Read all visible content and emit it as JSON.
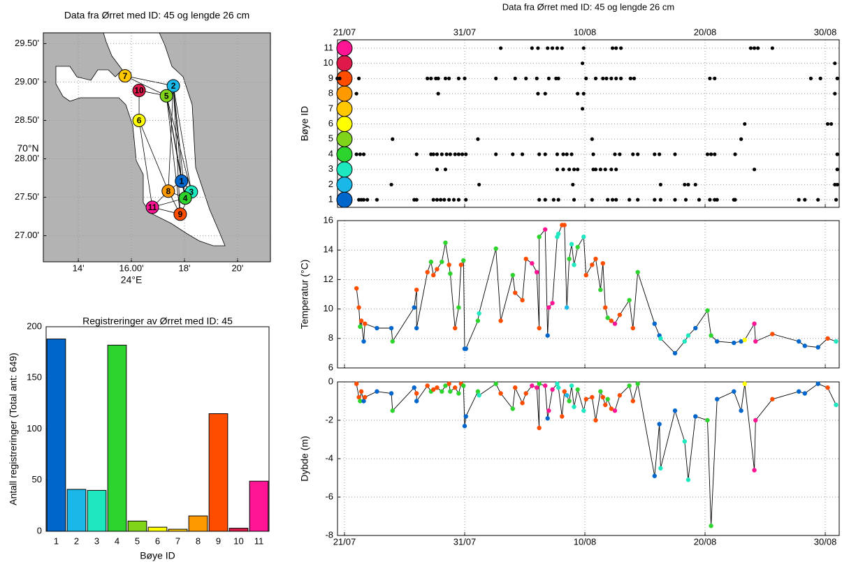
{
  "chart_data": [
    {
      "type": "scatter",
      "title": "Data fra Ørret med ID: 45 og lengde 26 cm",
      "xlabel": "24°E",
      "ylabel": "70°N",
      "labels": [
        "1",
        "2",
        "3",
        "4",
        "5",
        "6",
        "7",
        "8",
        "9",
        "10",
        "11"
      ],
      "x": [
        17.89,
        17.58,
        18.26,
        18.03,
        17.32,
        16.29,
        15.76,
        17.39,
        17.84,
        16.29,
        16.79
      ],
      "y": [
        27.71,
        28.95,
        27.57,
        27.49,
        28.82,
        28.5,
        29.08,
        27.58,
        27.28,
        28.89,
        27.37
      ],
      "xlim": [
        12.68,
        21.24
      ],
      "ylim": [
        26.66,
        29.64
      ],
      "xticks": [
        {
          "value": 14,
          "label": "14'"
        },
        {
          "value": 16,
          "label": "16.00'"
        },
        {
          "value": 18,
          "label": "18'"
        },
        {
          "value": 20,
          "label": "20'"
        }
      ],
      "yticks": [
        {
          "value": 27,
          "label": "27.00'"
        },
        {
          "value": 27.5,
          "label": "27.50'"
        },
        {
          "value": 28,
          "label": "28.00'"
        },
        {
          "value": 28.5,
          "label": "28.50'"
        },
        {
          "value": 29,
          "label": "29.00'"
        },
        {
          "value": 29.5,
          "label": "29.50'"
        }
      ],
      "grid": true
    },
    {
      "type": "bar",
      "title": "Registreringer av Ørret med ID: 45",
      "xlabel": "Bøye ID",
      "ylabel": "Antall registreringer (Total ant: 649)",
      "categories": [
        "1",
        "2",
        "3",
        "4",
        "5",
        "6",
        "7",
        "8",
        "9",
        "10",
        "11"
      ],
      "values": [
        188,
        41,
        40,
        182,
        10,
        4,
        2,
        15,
        115,
        3,
        49
      ],
      "colors": [
        "#0066cc",
        "#1ab8e8",
        "#1de8c0",
        "#2ed42e",
        "#80d41a",
        "#ffff00",
        "#ffc800",
        "#ff9900",
        "#ff4d00",
        "#e0194b",
        "#ff1493"
      ],
      "ylim": [
        0,
        200
      ],
      "yticks": [
        0,
        50,
        100,
        150,
        200
      ]
    },
    {
      "type": "detections",
      "title": "Data fra Ørret med ID: 45 og lengde 26 cm",
      "ylabel": "Bøye ID",
      "series": [
        {
          "buoy": 1,
          "x": [
            203.2,
            203.4,
            203.6,
            203.9,
            204.7,
            207.8,
            208.0,
            209.4,
            209.7,
            210.0,
            210.3,
            210.7,
            211.1,
            211.5,
            212.1,
            218.2,
            218.7,
            219.4,
            219.8,
            221.1,
            222.6,
            223.9,
            224.3,
            224.6,
            225.7,
            226.4,
            227.8,
            228.3,
            229.5,
            230.4,
            231.5,
            232.4,
            232.8,
            233.0,
            234.4,
            234.5,
            239.8,
            240.3,
            241.4,
            242.9
          ]
        },
        {
          "buoy": 2,
          "x": [
            205.9,
            213.2,
            221.0,
            228.3,
            230.3,
            230.6,
            231.2,
            242.8,
            243.0
          ]
        },
        {
          "buoy": 3,
          "x": [
            209.7,
            210.4,
            219.7,
            220.2,
            220.7,
            221.1,
            221.4,
            222.7,
            222.9,
            223.3,
            223.7,
            224.2,
            224.6,
            236.1,
            243.0
          ]
        },
        {
          "buoy": 4,
          "x": [
            203.0,
            203.3,
            203.6,
            208.0,
            209.2,
            209.4,
            209.7,
            210.1,
            210.5,
            210.8,
            211.2,
            211.5,
            211.8,
            212.1,
            214.6,
            216.0,
            216.8,
            218.2,
            218.7,
            219.7,
            220.2,
            220.5,
            220.9,
            222.7,
            224.5,
            224.9,
            226.0,
            226.4,
            227.8,
            228.2,
            229.5,
            232.2,
            232.5,
            232.8,
            234.5,
            243.0
          ]
        },
        {
          "buoy": 5,
          "x": [
            206.0,
            213.1,
            222.6,
            235.0
          ]
        },
        {
          "buoy": 6,
          "x": [
            235.3,
            242.2,
            242.5
          ]
        },
        {
          "buoy": 7,
          "x": [
            221.8
          ]
        },
        {
          "buoy": 8,
          "x": [
            203.0,
            209.8,
            218.1,
            218.7,
            221.4,
            221.9,
            242.8
          ]
        },
        {
          "buoy": 9,
          "x": [
            201.4,
            201.6,
            203.2,
            208.9,
            209.2,
            209.6,
            209.8,
            210.4,
            210.7,
            211.5,
            212.0,
            214.6,
            216.2,
            217.1,
            218.0,
            219.0,
            219.6,
            219.8,
            222.1,
            222.9,
            223.5,
            223.8,
            224.2,
            224.6,
            225.0,
            225.8,
            226.1,
            232.4,
            232.8,
            240.8,
            241.6,
            243.0
          ]
        },
        {
          "buoy": 10,
          "x": [
            221.8,
            242.8
          ]
        },
        {
          "buoy": 11,
          "x": [
            215.0,
            217.6,
            218.1,
            218.9,
            219.3,
            219.7,
            220.1,
            221.9,
            224.3,
            224.6,
            225.0,
            235.8,
            236.1,
            236.4,
            237.6
          ]
        }
      ],
      "xlim": [
        201.42,
        243.16
      ],
      "ylim": [
        0.5,
        11.55
      ],
      "xticks": [
        {
          "value": 202,
          "label": "21/07"
        },
        {
          "value": 212,
          "label": "31/07"
        },
        {
          "value": 222,
          "label": "10/08"
        },
        {
          "value": 232,
          "label": "20/08"
        },
        {
          "value": 242,
          "label": "30/08"
        }
      ],
      "yticks": [
        1,
        2,
        3,
        4,
        5,
        6,
        7,
        8,
        9,
        10,
        11
      ],
      "grid": true
    },
    {
      "type": "line",
      "ylabel": "Temperatur (°C)",
      "x": [
        203.0,
        203.2,
        203.3,
        203.4,
        203.6,
        203.7,
        204.7,
        205.9,
        206.0,
        207.8,
        208.0,
        208.0,
        208.9,
        209.2,
        209.4,
        209.7,
        210.1,
        210.4,
        210.7,
        210.8,
        211.2,
        211.5,
        211.7,
        211.9,
        212.0,
        212.1,
        213.1,
        213.2,
        214.6,
        215.0,
        216.0,
        216.2,
        216.8,
        217.1,
        217.6,
        218.0,
        218.2,
        218.2,
        218.7,
        218.9,
        219.0,
        219.3,
        219.7,
        219.8,
        220.1,
        220.3,
        220.5,
        220.7,
        220.9,
        221.1,
        221.4,
        221.9,
        222.1,
        222.6,
        222.9,
        223.3,
        223.5,
        223.7,
        223.9,
        224.2,
        224.5,
        224.9,
        225.7,
        226.0,
        226.4,
        227.8,
        228.2,
        228.3,
        229.5,
        230.3,
        230.6,
        231.2,
        232.2,
        232.5,
        233.0,
        234.4,
        235.0,
        235.3,
        236.1,
        236.2,
        237.6,
        239.8,
        240.3,
        241.4,
        242.2,
        242.9
      ],
      "values": [
        11.4,
        10.1,
        8.8,
        9.2,
        7.8,
        9.0,
        8.7,
        8.7,
        7.8,
        10.1,
        11.3,
        8.7,
        12.5,
        13.2,
        12.3,
        12.7,
        13.2,
        14.5,
        13.0,
        12.4,
        8.7,
        10.1,
        13.0,
        13.3,
        7.3,
        7.3,
        9.2,
        9.7,
        14.1,
        9.2,
        12.3,
        11.1,
        10.6,
        13.4,
        13.1,
        12.5,
        8.7,
        14.9,
        15.4,
        8.2,
        10.1,
        10.4,
        14.9,
        15.1,
        15.7,
        15.7,
        10.1,
        13.4,
        14.4,
        13.0,
        14.2,
        14.9,
        12.3,
        13.0,
        13.4,
        11.3,
        13.1,
        10.1,
        9.4,
        9.2,
        9.0,
        9.6,
        10.6,
        8.7,
        12.5,
        9.0,
        8.2,
        8.0,
        7.0,
        7.8,
        8.2,
        8.7,
        9.9,
        8.2,
        7.8,
        7.7,
        7.8,
        7.9,
        9.0,
        7.8,
        8.3,
        7.8,
        7.5,
        7.4,
        8.0,
        7.8
      ],
      "buoy": [
        9,
        9,
        4,
        9,
        1,
        9,
        1,
        1,
        4,
        1,
        9,
        1,
        9,
        4,
        9,
        9,
        4,
        4,
        9,
        4,
        9,
        4,
        9,
        4,
        1,
        1,
        4,
        3,
        4,
        9,
        4,
        9,
        9,
        9,
        11,
        11,
        9,
        4,
        11,
        1,
        11,
        11,
        3,
        3,
        9,
        9,
        2,
        4,
        3,
        3,
        4,
        3,
        9,
        9,
        9,
        4,
        9,
        9,
        4,
        9,
        11,
        9,
        4,
        9,
        4,
        1,
        1,
        3,
        1,
        3,
        3,
        1,
        4,
        4,
        1,
        1,
        1,
        6,
        11,
        11,
        9,
        1,
        1,
        1,
        9,
        3
      ],
      "xlim": [
        201.42,
        243.16
      ],
      "ylim": [
        6,
        16
      ],
      "yticks": [
        6,
        8,
        10,
        12,
        14,
        16
      ],
      "grid": true
    },
    {
      "type": "line",
      "ylabel": "Dybde (m)",
      "x": [
        203.0,
        203.2,
        203.3,
        203.4,
        203.6,
        203.7,
        204.7,
        205.9,
        206.0,
        207.8,
        208.0,
        208.0,
        208.9,
        209.2,
        209.4,
        209.7,
        210.1,
        210.4,
        210.7,
        210.8,
        211.2,
        211.5,
        211.7,
        211.9,
        212.0,
        212.1,
        213.1,
        213.2,
        214.6,
        215.0,
        216.0,
        216.2,
        216.8,
        217.1,
        217.6,
        218.0,
        218.2,
        218.2,
        218.7,
        218.9,
        219.0,
        219.3,
        219.7,
        219.8,
        220.1,
        220.3,
        220.5,
        220.7,
        220.9,
        221.1,
        221.4,
        221.9,
        222.1,
        222.6,
        222.9,
        223.3,
        223.5,
        223.7,
        223.9,
        224.2,
        224.5,
        224.9,
        225.7,
        226.0,
        226.4,
        227.8,
        228.2,
        228.3,
        229.5,
        230.3,
        230.6,
        231.2,
        232.2,
        232.5,
        233.0,
        234.4,
        235.0,
        235.3,
        236.1,
        236.2,
        237.6,
        239.8,
        240.3,
        241.4,
        242.2,
        242.9
      ],
      "values": [
        -0.1,
        -0.8,
        -1.0,
        -0.5,
        -1.0,
        -0.8,
        -0.5,
        -0.6,
        -1.5,
        -0.3,
        -0.6,
        -1.0,
        -0.2,
        -0.5,
        -0.4,
        -0.3,
        -0.5,
        -0.2,
        -0.1,
        -0.5,
        -0.3,
        -0.6,
        -0.1,
        -0.2,
        -2.3,
        -1.8,
        -0.5,
        -0.7,
        -0.1,
        -0.6,
        -1.4,
        -0.3,
        -1.1,
        -0.6,
        -0.2,
        -0.3,
        -2.4,
        -0.1,
        -0.2,
        -1.9,
        -1.5,
        -0.4,
        -0.1,
        -0.3,
        -1.8,
        -0.5,
        -0.7,
        -1.0,
        -0.2,
        -1.3,
        -0.4,
        -1.5,
        -0.9,
        -0.8,
        -2.0,
        -0.5,
        -0.8,
        -1.2,
        -0.9,
        -1.4,
        -1.5,
        -0.7,
        -0.2,
        -1.0,
        -0.1,
        -4.9,
        -2.2,
        -4.5,
        -1.5,
        -3.1,
        -5.1,
        -1.8,
        -2.0,
        -7.5,
        -0.9,
        -0.5,
        -1.5,
        -0.1,
        -4.6,
        -2.0,
        -0.9,
        -0.5,
        -0.6,
        -0.1,
        -0.3,
        -1.2
      ],
      "buoy": [
        9,
        9,
        4,
        9,
        1,
        9,
        1,
        1,
        4,
        1,
        9,
        1,
        9,
        4,
        9,
        9,
        4,
        4,
        9,
        4,
        9,
        4,
        9,
        4,
        1,
        1,
        4,
        3,
        4,
        9,
        4,
        9,
        9,
        9,
        11,
        11,
        9,
        4,
        11,
        1,
        11,
        11,
        3,
        3,
        9,
        9,
        2,
        4,
        3,
        3,
        4,
        3,
        9,
        9,
        9,
        4,
        9,
        9,
        4,
        9,
        11,
        9,
        4,
        9,
        4,
        1,
        1,
        3,
        1,
        3,
        3,
        1,
        4,
        4,
        1,
        1,
        1,
        6,
        11,
        11,
        9,
        1,
        1,
        1,
        9,
        3
      ],
      "xlim": [
        201.42,
        243.16
      ],
      "ylim": [
        -8,
        0
      ],
      "xticks": [
        {
          "value": 202,
          "label": "21/07"
        },
        {
          "value": 212,
          "label": "31/07"
        },
        {
          "value": 222,
          "label": "10/08"
        },
        {
          "value": 232,
          "label": "20/08"
        },
        {
          "value": 242,
          "label": "30/08"
        }
      ],
      "yticks": [
        -8,
        -6,
        -4,
        -2,
        0
      ],
      "grid": true
    }
  ]
}
